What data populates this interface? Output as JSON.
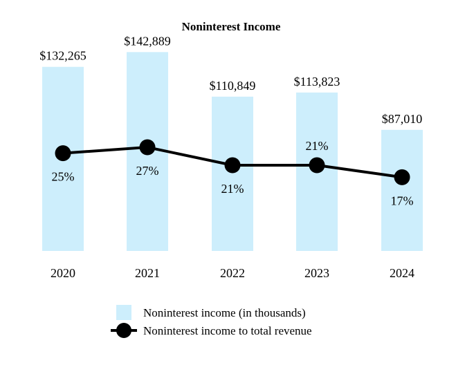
{
  "chart_data": {
    "type": "bar",
    "title": "Noninterest Income",
    "xlabel": "",
    "ylabel": "",
    "ylim": [
      0,
      150000
    ],
    "categories": [
      "2020",
      "2021",
      "2022",
      "2023",
      "2024"
    ],
    "series": [
      {
        "name": "Noninterest income (in thousands)",
        "type": "bar",
        "values": [
          132265,
          142889,
          110849,
          113823,
          87010
        ],
        "labels": [
          "$132,265",
          "$142,889",
          "$110,849",
          "$113,823",
          "$87,010"
        ],
        "color": "#cdeefc"
      },
      {
        "name": "Noninterest income to total revenue",
        "type": "line",
        "values": [
          25,
          27,
          21,
          21,
          17
        ],
        "labels": [
          "25%",
          "27%",
          "21%",
          "21%",
          "17%"
        ],
        "ylim": [
          0,
          60
        ],
        "color": "#000000"
      }
    ],
    "legend": "bottom-center",
    "grid": false
  }
}
